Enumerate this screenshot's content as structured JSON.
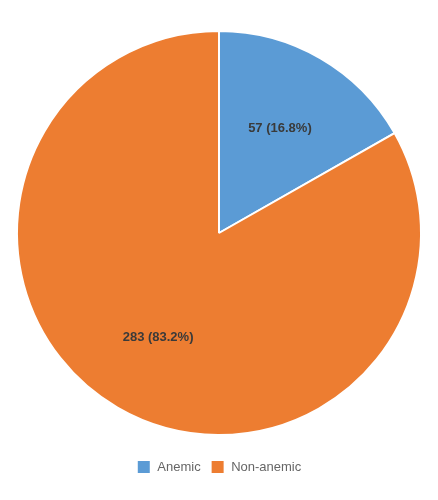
{
  "chart_data": {
    "type": "pie",
    "categories": [
      "Anemic",
      "Non-anemic"
    ],
    "values": [
      57,
      283
    ],
    "value_labels": [
      "57 (16.8%)",
      "283 (83.2%)"
    ],
    "data_labels": true,
    "colors": [
      "#5B9BD5",
      "#ED7D31"
    ],
    "legend": "bottom"
  }
}
